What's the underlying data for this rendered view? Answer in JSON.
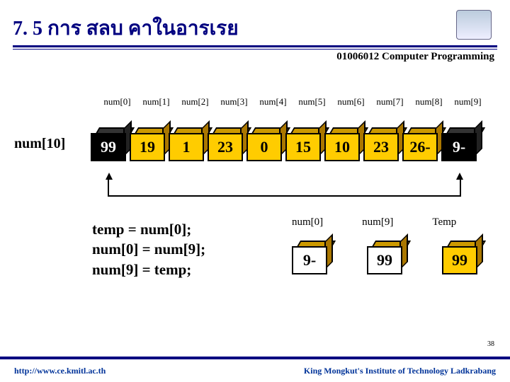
{
  "header": {
    "title": "7. 5 การ สลบ คาในอารเรย",
    "course": "01006012 Computer Programming"
  },
  "array": {
    "name": "num[10]",
    "index_labels": [
      "num[0]",
      "num[1]",
      "num[2]",
      "num[3]",
      "num[4]",
      "num[5]",
      "num[6]",
      "num[7]",
      "num[8]",
      "num[9]"
    ],
    "values": [
      "99",
      "19",
      "1",
      "23",
      "0",
      "15",
      "10",
      "23",
      "26-",
      "9-"
    ]
  },
  "code": {
    "l1": "temp = num[0];",
    "l2": "num[0] = num[9];",
    "l3": "num[9] = temp;"
  },
  "swap": {
    "labels": [
      "num[0]",
      "num[9]",
      "Temp"
    ],
    "values": [
      "9-",
      "99",
      "99"
    ]
  },
  "footer": {
    "left": "http://www.ce.kmitl.ac.th",
    "right": "King Mongkut's Institute of Technology Ladkrabang",
    "page": "38"
  },
  "colors": {
    "cell_bg": "#ffcc00",
    "title_color": "#000080"
  }
}
